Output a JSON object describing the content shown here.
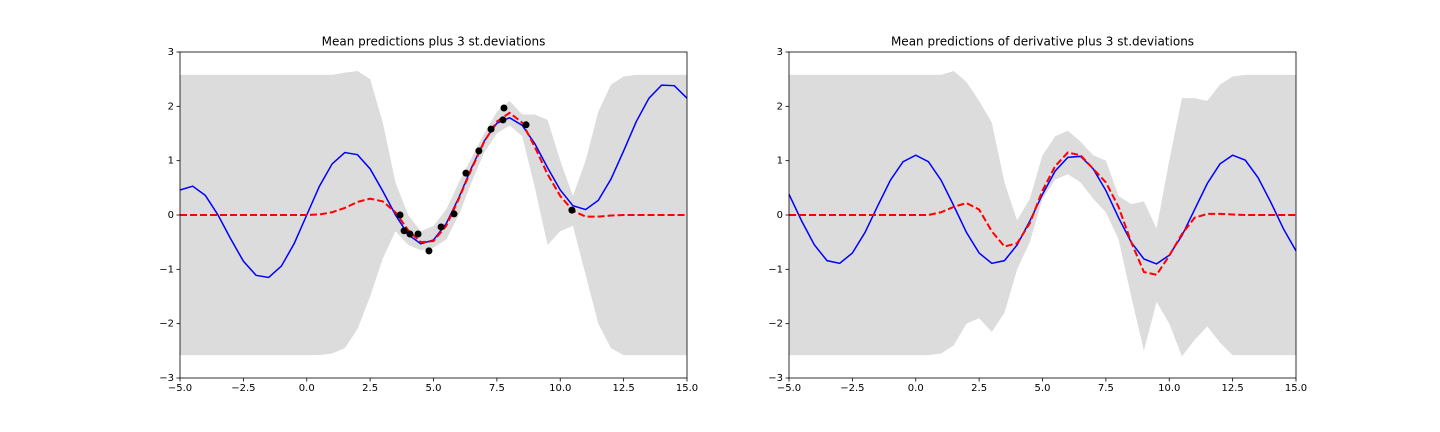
{
  "chart_data": [
    {
      "type": "line",
      "title": "Mean predictions plus 3 st.deviations",
      "x": [
        -5,
        -4.5,
        -4,
        -3.5,
        -3,
        -2.5,
        -2,
        -1.5,
        -1,
        -0.5,
        0,
        0.5,
        1,
        1.5,
        2,
        2.5,
        3,
        3.5,
        4,
        4.5,
        5,
        5.5,
        6,
        6.5,
        7,
        7.5,
        8,
        8.5,
        9,
        9.5,
        10,
        10.5,
        11,
        11.5,
        12,
        12.5,
        13,
        13.5,
        14,
        14.5,
        15
      ],
      "band": {
        "color": "#dcdcdc",
        "upper": [
          2.58,
          2.58,
          2.58,
          2.58,
          2.58,
          2.58,
          2.58,
          2.58,
          2.58,
          2.58,
          2.58,
          2.58,
          2.58,
          2.62,
          2.65,
          2.5,
          1.7,
          0.6,
          0.0,
          -0.3,
          -0.2,
          0.1,
          0.6,
          1.05,
          1.5,
          1.9,
          2.1,
          1.85,
          1.85,
          1.75,
          1.0,
          0.35,
          1.0,
          1.9,
          2.4,
          2.55,
          2.58,
          2.58,
          2.58,
          2.58,
          2.58
        ],
        "lower": [
          -2.58,
          -2.58,
          -2.58,
          -2.58,
          -2.58,
          -2.58,
          -2.58,
          -2.58,
          -2.58,
          -2.58,
          -2.58,
          -2.58,
          -2.55,
          -2.45,
          -2.1,
          -1.5,
          -0.8,
          -0.3,
          -0.55,
          -0.65,
          -0.6,
          -0.45,
          0.0,
          0.6,
          1.15,
          1.5,
          1.65,
          1.45,
          0.5,
          -0.55,
          -0.3,
          -0.2,
          -1.1,
          -2.0,
          -2.45,
          -2.58,
          -2.58,
          -2.58,
          -2.58,
          -2.58,
          -2.58
        ]
      },
      "series": [
        {
          "color": "#0000ff",
          "style": "solid",
          "values": [
            0.46,
            0.53,
            0.36,
            0.0,
            -0.44,
            -0.85,
            -1.11,
            -1.15,
            -0.94,
            -0.53,
            0,
            0.53,
            0.94,
            1.15,
            1.11,
            0.85,
            0.44,
            0.0,
            -0.36,
            -0.53,
            -0.46,
            -0.16,
            0.32,
            0.87,
            1.36,
            1.69,
            1.79,
            1.65,
            1.31,
            0.87,
            0.46,
            0.17,
            0.1,
            0.27,
            0.66,
            1.18,
            1.72,
            2.15,
            2.39,
            2.38,
            2.15
          ]
        },
        {
          "color": "#ff0000",
          "style": "dashed",
          "values": [
            0,
            0,
            0,
            0,
            0,
            0,
            0,
            0,
            0,
            0,
            0,
            0.01,
            0.05,
            0.13,
            0.24,
            0.3,
            0.25,
            0.05,
            -0.28,
            -0.5,
            -0.48,
            -0.2,
            0.3,
            0.85,
            1.35,
            1.72,
            1.88,
            1.7,
            1.25,
            0.75,
            0.35,
            0.08,
            -0.03,
            -0.03,
            -0.01,
            0,
            0,
            0,
            0,
            0,
            0
          ]
        }
      ],
      "points": {
        "color": "#000000",
        "x": [
          3.68,
          3.84,
          4.07,
          4.39,
          4.82,
          5.3,
          5.81,
          6.28,
          6.79,
          7.27,
          7.74,
          7.78,
          8.65,
          10.46
        ],
        "y": [
          0.0,
          -0.29,
          -0.35,
          -0.35,
          -0.66,
          -0.22,
          0.02,
          0.77,
          1.18,
          1.58,
          1.75,
          1.97,
          1.66,
          0.09
        ]
      },
      "xlim": [
        -5,
        15
      ],
      "xticks": [
        {
          "value": -5,
          "label": "−5.0"
        },
        {
          "value": -2.5,
          "label": "−2.5"
        },
        {
          "value": 0,
          "label": "0.0"
        },
        {
          "value": 2.5,
          "label": "2.5"
        },
        {
          "value": 5,
          "label": "5.0"
        },
        {
          "value": 7.5,
          "label": "7.5"
        },
        {
          "value": 10,
          "label": "10.0"
        },
        {
          "value": 12.5,
          "label": "12.5"
        },
        {
          "value": 15,
          "label": "15.0"
        }
      ],
      "ylim": [
        -3,
        3
      ],
      "yticks": [
        {
          "value": -3,
          "label": "−3"
        },
        {
          "value": -2,
          "label": "−2"
        },
        {
          "value": -1,
          "label": "−1"
        },
        0,
        1,
        2,
        3
      ]
    },
    {
      "type": "line",
      "title": "Mean predictions of derivative plus 3 st.deviations",
      "x": [
        -5,
        -4.5,
        -4,
        -3.5,
        -3,
        -2.5,
        -2,
        -1.5,
        -1,
        -0.5,
        0,
        0.5,
        1,
        1.5,
        2,
        2.5,
        3,
        3.5,
        4,
        4.5,
        5,
        5.5,
        6,
        6.5,
        7,
        7.5,
        8,
        8.5,
        9,
        9.5,
        10,
        10.5,
        11,
        11.5,
        12,
        12.5,
        13,
        13.5,
        14,
        14.5,
        15
      ],
      "band": {
        "color": "#dcdcdc",
        "upper": [
          2.58,
          2.58,
          2.58,
          2.58,
          2.58,
          2.58,
          2.58,
          2.58,
          2.58,
          2.58,
          2.58,
          2.58,
          2.58,
          2.65,
          2.45,
          2.1,
          1.7,
          0.6,
          -0.1,
          0.3,
          1.1,
          1.45,
          1.55,
          1.35,
          1.1,
          1.0,
          0.35,
          0.2,
          0.25,
          -0.25,
          1.0,
          2.15,
          2.15,
          2.1,
          2.4,
          2.55,
          2.58,
          2.58,
          2.58,
          2.58,
          2.58
        ],
        "lower": [
          -2.58,
          -2.58,
          -2.58,
          -2.58,
          -2.58,
          -2.58,
          -2.58,
          -2.58,
          -2.58,
          -2.58,
          -2.58,
          -2.58,
          -2.55,
          -2.4,
          -2.0,
          -1.9,
          -2.15,
          -1.8,
          -1.0,
          -0.5,
          0.3,
          0.65,
          0.75,
          0.6,
          0.3,
          0.05,
          -0.45,
          -1.5,
          -2.5,
          -1.6,
          -2.0,
          -2.6,
          -2.3,
          -2.05,
          -2.35,
          -2.58,
          -2.58,
          -2.58,
          -2.58,
          -2.58,
          -2.58
        ]
      },
      "series": [
        {
          "color": "#0000ff",
          "style": "solid",
          "values": [
            0.38,
            -0.11,
            -0.55,
            -0.84,
            -0.89,
            -0.7,
            -0.32,
            0.17,
            0.64,
            0.98,
            1.1,
            0.98,
            0.64,
            0.17,
            -0.32,
            -0.7,
            -0.89,
            -0.84,
            -0.55,
            -0.11,
            0.38,
            0.81,
            1.06,
            1.08,
            0.85,
            0.45,
            -0.05,
            -0.5,
            -0.81,
            -0.9,
            -0.74,
            -0.38,
            0.1,
            0.58,
            0.94,
            1.1,
            1.01,
            0.69,
            0.24,
            -0.25,
            -0.66
          ]
        },
        {
          "color": "#ff0000",
          "style": "dashed",
          "values": [
            0,
            0,
            0,
            0,
            0,
            0,
            0,
            0,
            0,
            0,
            0,
            0,
            0.05,
            0.15,
            0.22,
            0.1,
            -0.3,
            -0.58,
            -0.52,
            -0.15,
            0.45,
            0.9,
            1.15,
            1.1,
            0.85,
            0.6,
            0.15,
            -0.5,
            -1.05,
            -1.1,
            -0.75,
            -0.35,
            -0.05,
            0.02,
            0.02,
            0.01,
            0,
            0,
            0,
            0,
            0
          ]
        }
      ],
      "xlim": [
        -5,
        15
      ],
      "xticks": [
        {
          "value": -5,
          "label": "−5.0"
        },
        {
          "value": -2.5,
          "label": "−2.5"
        },
        {
          "value": 0,
          "label": "0.0"
        },
        {
          "value": 2.5,
          "label": "2.5"
        },
        {
          "value": 5,
          "label": "5.0"
        },
        {
          "value": 7.5,
          "label": "7.5"
        },
        {
          "value": 10,
          "label": "10.0"
        },
        {
          "value": 12.5,
          "label": "12.5"
        },
        {
          "value": 15,
          "label": "15.0"
        }
      ],
      "ylim": [
        -3,
        3
      ],
      "yticks": [
        {
          "value": -3,
          "label": "−3"
        },
        {
          "value": -2,
          "label": "−2"
        },
        {
          "value": -1,
          "label": "−1"
        },
        0,
        1,
        2,
        3
      ]
    }
  ]
}
